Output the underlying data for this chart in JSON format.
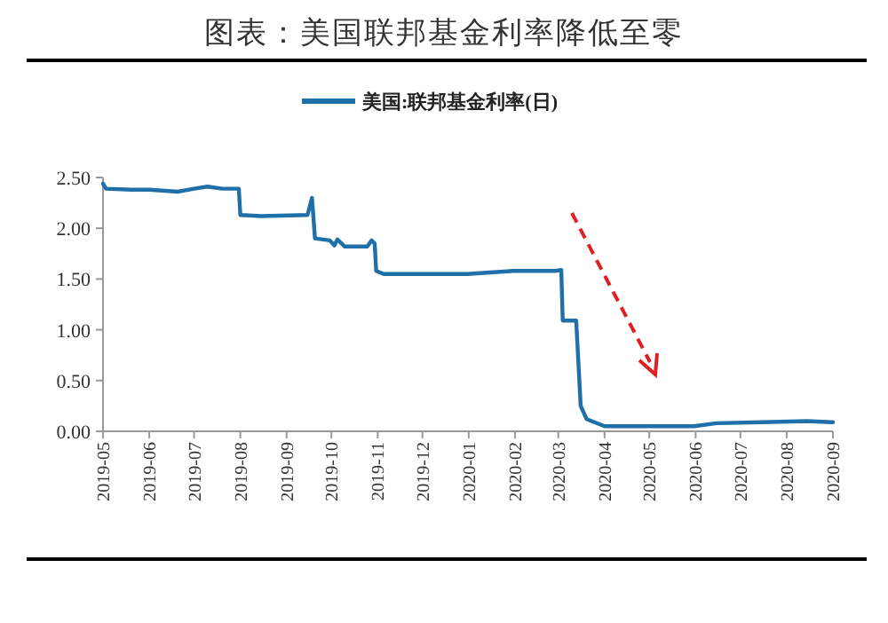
{
  "chart_data": {
    "type": "line",
    "title": "图表：美国联邦基金利率降低至零",
    "legend": "top",
    "series": [
      {
        "name": "美国:联邦基金利率(日)",
        "color": "#1f6fa8",
        "x": [
          "2019-05-01",
          "2019-05-03",
          "2019-05-20",
          "2019-06-01",
          "2019-06-20",
          "2019-07-01",
          "2019-07-10",
          "2019-07-20",
          "2019-07-31",
          "2019-08-01",
          "2019-08-15",
          "2019-09-15",
          "2019-09-18",
          "2019-09-20",
          "2019-09-30",
          "2019-10-03",
          "2019-10-05",
          "2019-10-10",
          "2019-10-25",
          "2019-10-28",
          "2019-10-30",
          "2019-10-31",
          "2019-11-05",
          "2019-12-31",
          "2020-01-31",
          "2020-02-28",
          "2020-03-03",
          "2020-03-04",
          "2020-03-13",
          "2020-03-16",
          "2020-03-20",
          "2020-04-01",
          "2020-04-30",
          "2020-05-31",
          "2020-06-15",
          "2020-07-15",
          "2020-08-15",
          "2020-08-31",
          "2020-09-01"
        ],
        "values": [
          2.44,
          2.39,
          2.38,
          2.38,
          2.36,
          2.39,
          2.41,
          2.39,
          2.39,
          2.13,
          2.12,
          2.13,
          2.3,
          1.9,
          1.88,
          1.83,
          1.89,
          1.82,
          1.82,
          1.88,
          1.85,
          1.58,
          1.55,
          1.55,
          1.58,
          1.58,
          1.59,
          1.09,
          1.09,
          0.25,
          0.12,
          0.05,
          0.05,
          0.05,
          0.08,
          0.09,
          0.1,
          0.09,
          0.09
        ]
      }
    ],
    "xlim": [
      "2019-05",
      "2020-09"
    ],
    "xticks": [
      "2019-05",
      "2019-06",
      "2019-07",
      "2019-08",
      "2019-09",
      "2019-10",
      "2019-11",
      "2019-12",
      "2020-01",
      "2020-02",
      "2020-03",
      "2020-04",
      "2020-05",
      "2020-06",
      "2020-07",
      "2020-08",
      "2020-09"
    ],
    "ylim": [
      0,
      2.5
    ],
    "yticks": [
      {
        "value": 0,
        "label": "0.00"
      },
      {
        "value": 0.5,
        "label": "0.50"
      },
      {
        "value": 1,
        "label": "1.00"
      },
      {
        "value": 1.5,
        "label": "1.50"
      },
      {
        "value": 2,
        "label": "2.00"
      },
      {
        "value": 2.5,
        "label": "2.50"
      }
    ],
    "line_style": "solid"
  }
}
